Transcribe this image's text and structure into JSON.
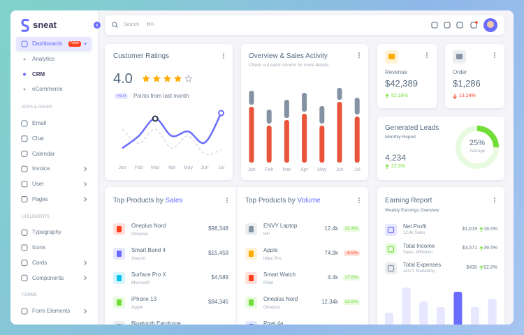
{
  "sidebar": {
    "brand": "sneat",
    "dashboards": {
      "label": "Dashboards",
      "badge": "New",
      "children": [
        "Analytics",
        "CRM",
        "eCommerce"
      ]
    },
    "sections": [
      {
        "title": "APPS & PAGES",
        "items": [
          "Email",
          "Chat",
          "Calendar",
          "Invoice",
          "User",
          "Pages"
        ]
      },
      {
        "title": "UI ELEMENTS",
        "items": [
          "Typography",
          "Icons",
          "Cards",
          "Components"
        ]
      },
      {
        "title": "FORMS",
        "items": [
          "Form Elements"
        ]
      }
    ]
  },
  "topbar": {
    "search": "Search",
    "shortcut": "⌘K"
  },
  "customer_ratings": {
    "title": "Customer Ratings",
    "rating": "4.0",
    "change": "+5.0",
    "note": "Points from last month",
    "chart": {
      "type": "line",
      "categories": [
        "Jan",
        "Feb",
        "Mar",
        "Apr",
        "May",
        "Jun",
        "Jul"
      ],
      "ylim": [
        0,
        100
      ],
      "series": [
        {
          "color": "#696cff",
          "values": [
            22,
            44,
            75,
            44,
            52,
            32,
            85
          ]
        },
        {
          "color": "#e4e4ea",
          "values": [
            56,
            31,
            56,
            22,
            44,
            12,
            19
          ]
        }
      ]
    }
  },
  "overview": {
    "title": "Overview & Sales Activity",
    "subtitle": "Check out each column for more details",
    "chart": {
      "type": "bar",
      "stacked": true,
      "categories": [
        "Jan",
        "Feb",
        "Mar",
        "Apr",
        "May",
        "Jun",
        "Jul"
      ],
      "ylim": [
        0,
        110
      ],
      "series": [
        {
          "color": "#e9553a",
          "values": [
            80,
            53,
            61,
            70,
            53,
            87,
            66
          ]
        },
        {
          "color": "#8592a3",
          "values": [
            20,
            20,
            26,
            27,
            25,
            17,
            24
          ]
        }
      ]
    }
  },
  "revenue": {
    "label": "Revenue",
    "value": "$42,389",
    "change": "52.18%"
  },
  "order": {
    "label": "Order",
    "value": "$1,286",
    "change": "13.24%"
  },
  "leads": {
    "title": "Generated Leads",
    "subtitle": "Monthly Report",
    "value": "4,234",
    "change": "22.3%",
    "donut": {
      "type": "donut",
      "value": 25,
      "value_label": "25%",
      "label": "Average",
      "color": "#71dd37"
    }
  },
  "sales": {
    "title": "Top Products by",
    "highlight": "Sales",
    "rows": [
      {
        "name": "Oneplus Nord",
        "brand": "Oneplus",
        "amount": "$98,348"
      },
      {
        "name": "Smart Band 4",
        "brand": "Xiaomi",
        "amount": "$15,459"
      },
      {
        "name": "Surface Pro X",
        "brand": "Microsoft",
        "amount": "$4,589"
      },
      {
        "name": "iPhone 13",
        "brand": "Apple",
        "amount": "$84,345"
      },
      {
        "name": "Bluetooth Earphone"
      }
    ]
  },
  "volume": {
    "title": "Top Products by",
    "highlight": "Volume",
    "rows": [
      {
        "name": "ENVY Laptop",
        "brand": "HP",
        "value": "12.4k",
        "change": "12.4%"
      },
      {
        "name": "Apple",
        "brand": "iMac Pro",
        "value": "74.9k",
        "change": "-8.5%"
      },
      {
        "name": "Smart Watch",
        "brand": "Fitbit",
        "value": "4.4k",
        "change": "17.6%"
      },
      {
        "name": "Oneplus Nord",
        "brand": "Oneplus",
        "value": "12.34k",
        "change": "13.9%"
      },
      {
        "name": "Pixel 4a"
      }
    ]
  },
  "earning": {
    "title": "Earning Report",
    "subtitle": "Weekly Earnings Overview",
    "rows": [
      {
        "label": "Net Profit",
        "sub": "12.4k Sales",
        "amount": "$1,619",
        "change": "18.6%"
      },
      {
        "label": "Total Income",
        "sub": "Sales, Affiliation",
        "amount": "$3,571",
        "change": "39.6%"
      },
      {
        "label": "Total Expenses",
        "sub": "ADVT, Marketing",
        "amount": "$430",
        "change": "52.8%"
      }
    ],
    "chart": {
      "type": "bar",
      "ylim": [
        0,
        60
      ],
      "values": [
        22,
        58,
        38,
        30,
        52,
        30,
        42
      ],
      "colors": [
        "#e7e7ff",
        "#e7e7ff",
        "#e7e7ff",
        "#e7e7ff",
        "#696cff",
        "#e7e7ff",
        "#e7e7ff"
      ]
    }
  }
}
